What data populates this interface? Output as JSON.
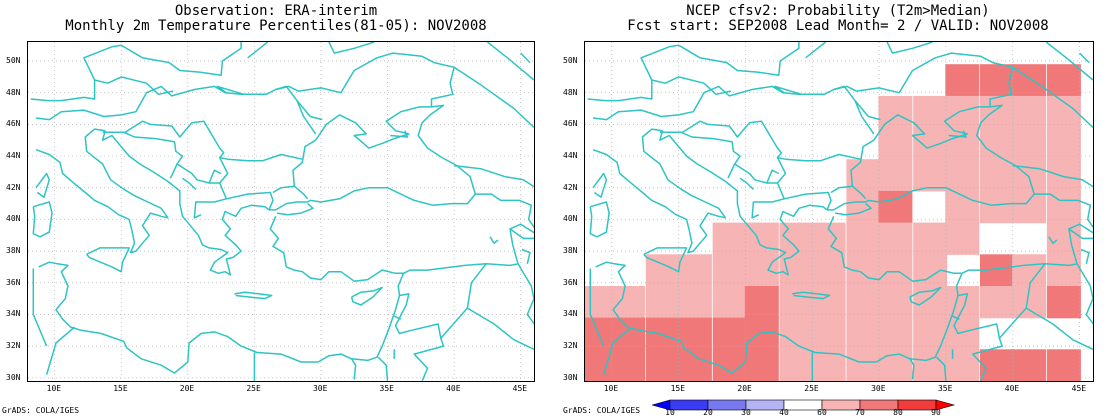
{
  "left_panel": {
    "title_line1": "Observation: ERA-interim",
    "title_line2": "Monthly 2m Temperature Percentiles(81-05): NOV2008",
    "credit": "GrADS: COLA/IGES"
  },
  "right_panel": {
    "title_line1": "NCEP cfsv2: Probability (T2m>Median)",
    "title_line2": "Fcst start: SEP2008  Lead Month= 2 / VALID: NOV2008",
    "credit": "GrADS: COLA/IGES"
  },
  "map": {
    "lon_range": [
      8,
      46
    ],
    "lat_range": [
      29.8,
      51.2
    ],
    "lon_ticks": [
      "10E",
      "15E",
      "20E",
      "25E",
      "30E",
      "35E",
      "40E",
      "45E"
    ],
    "lat_ticks": [
      "30N",
      "32N",
      "34N",
      "36N",
      "38N",
      "40N",
      "42N",
      "44N",
      "46N",
      "48N",
      "50N"
    ],
    "grid": true,
    "coast_color": "#2ec4c4",
    "grid_color": "#b0b0b0"
  },
  "colorbar": {
    "labels": [
      "10",
      "20",
      "30",
      "40",
      "60",
      "70",
      "80",
      "90"
    ],
    "colors": [
      "#0000ff",
      "#3c3cf5",
      "#7878f0",
      "#b4b4f5",
      "#ffffff",
      "#f7b4b4",
      "#f07878",
      "#f03c3c",
      "#ff0000"
    ]
  },
  "chart_data": {
    "type": "heatmap",
    "cell_size_deg": [
      2.5,
      2
    ],
    "levels": {
      "1": "60-70",
      "2": "70-80",
      "3": "80-90"
    },
    "cells": [
      {
        "lon": 36.2,
        "lat": 48.8,
        "level": 2
      },
      {
        "lon": 38.8,
        "lat": 48.8,
        "level": 2
      },
      {
        "lon": 41.2,
        "lat": 48.8,
        "level": 2
      },
      {
        "lon": 43.8,
        "lat": 48.8,
        "level": 2
      },
      {
        "lon": 31.2,
        "lat": 46.8,
        "level": 1
      },
      {
        "lon": 33.8,
        "lat": 46.8,
        "level": 1
      },
      {
        "lon": 36.2,
        "lat": 46.8,
        "level": 1
      },
      {
        "lon": 38.8,
        "lat": 46.8,
        "level": 1
      },
      {
        "lon": 41.2,
        "lat": 46.8,
        "level": 1
      },
      {
        "lon": 43.8,
        "lat": 46.8,
        "level": 1
      },
      {
        "lon": 31.2,
        "lat": 44.8,
        "level": 1
      },
      {
        "lon": 33.8,
        "lat": 44.8,
        "level": 1
      },
      {
        "lon": 36.2,
        "lat": 44.8,
        "level": 1
      },
      {
        "lon": 38.8,
        "lat": 44.8,
        "level": 1
      },
      {
        "lon": 41.2,
        "lat": 44.8,
        "level": 1
      },
      {
        "lon": 43.8,
        "lat": 44.8,
        "level": 1
      },
      {
        "lon": 28.8,
        "lat": 42.8,
        "level": 1
      },
      {
        "lon": 31.2,
        "lat": 42.8,
        "level": 1
      },
      {
        "lon": 33.8,
        "lat": 42.8,
        "level": 1
      },
      {
        "lon": 36.2,
        "lat": 42.8,
        "level": 1
      },
      {
        "lon": 38.8,
        "lat": 42.8,
        "level": 1
      },
      {
        "lon": 41.2,
        "lat": 42.8,
        "level": 1
      },
      {
        "lon": 43.8,
        "lat": 42.8,
        "level": 1
      },
      {
        "lon": 28.8,
        "lat": 40.8,
        "level": 1
      },
      {
        "lon": 31.2,
        "lat": 40.8,
        "level": 2
      },
      {
        "lon": 36.2,
        "lat": 40.8,
        "level": 1
      },
      {
        "lon": 38.8,
        "lat": 40.8,
        "level": 1
      },
      {
        "lon": 41.2,
        "lat": 40.8,
        "level": 1
      },
      {
        "lon": 43.8,
        "lat": 40.8,
        "level": 1
      },
      {
        "lon": 18.8,
        "lat": 38.8,
        "level": 1
      },
      {
        "lon": 21.2,
        "lat": 38.8,
        "level": 1
      },
      {
        "lon": 23.8,
        "lat": 38.8,
        "level": 1
      },
      {
        "lon": 26.2,
        "lat": 38.8,
        "level": 1
      },
      {
        "lon": 28.8,
        "lat": 38.8,
        "level": 1
      },
      {
        "lon": 31.2,
        "lat": 38.8,
        "level": 1
      },
      {
        "lon": 33.8,
        "lat": 38.8,
        "level": 1
      },
      {
        "lon": 36.2,
        "lat": 38.8,
        "level": 1
      },
      {
        "lon": 43.8,
        "lat": 38.8,
        "level": 1
      },
      {
        "lon": 13.8,
        "lat": 36.8,
        "level": 1
      },
      {
        "lon": 16.2,
        "lat": 36.8,
        "level": 1
      },
      {
        "lon": 18.8,
        "lat": 36.8,
        "level": 1
      },
      {
        "lon": 21.2,
        "lat": 36.8,
        "level": 1
      },
      {
        "lon": 23.8,
        "lat": 36.8,
        "level": 1
      },
      {
        "lon": 26.2,
        "lat": 36.8,
        "level": 1
      },
      {
        "lon": 28.8,
        "lat": 36.8,
        "level": 1
      },
      {
        "lon": 31.2,
        "lat": 36.8,
        "level": 1
      },
      {
        "lon": 33.8,
        "lat": 36.8,
        "level": 1
      },
      {
        "lon": 38.8,
        "lat": 36.8,
        "level": 2
      },
      {
        "lon": 41.2,
        "lat": 36.8,
        "level": 1
      },
      {
        "lon": 43.8,
        "lat": 36.8,
        "level": 1
      },
      {
        "lon": 8.8,
        "lat": 34.8,
        "level": 1
      },
      {
        "lon": 11.2,
        "lat": 34.8,
        "level": 1
      },
      {
        "lon": 13.8,
        "lat": 34.8,
        "level": 1
      },
      {
        "lon": 16.2,
        "lat": 34.8,
        "level": 1
      },
      {
        "lon": 18.8,
        "lat": 34.8,
        "level": 1
      },
      {
        "lon": 21.2,
        "lat": 34.8,
        "level": 2
      },
      {
        "lon": 23.8,
        "lat": 34.8,
        "level": 1
      },
      {
        "lon": 26.2,
        "lat": 34.8,
        "level": 1
      },
      {
        "lon": 28.8,
        "lat": 34.8,
        "level": 1
      },
      {
        "lon": 31.2,
        "lat": 34.8,
        "level": 1
      },
      {
        "lon": 33.8,
        "lat": 34.8,
        "level": 1
      },
      {
        "lon": 36.2,
        "lat": 34.8,
        "level": 1
      },
      {
        "lon": 38.8,
        "lat": 34.8,
        "level": 1
      },
      {
        "lon": 41.2,
        "lat": 34.8,
        "level": 1
      },
      {
        "lon": 43.8,
        "lat": 34.8,
        "level": 2
      },
      {
        "lon": 8.8,
        "lat": 32.8,
        "level": 2
      },
      {
        "lon": 11.2,
        "lat": 32.8,
        "level": 2
      },
      {
        "lon": 13.8,
        "lat": 32.8,
        "level": 2
      },
      {
        "lon": 16.2,
        "lat": 32.8,
        "level": 2
      },
      {
        "lon": 18.8,
        "lat": 32.8,
        "level": 2
      },
      {
        "lon": 21.2,
        "lat": 32.8,
        "level": 2
      },
      {
        "lon": 23.8,
        "lat": 32.8,
        "level": 1
      },
      {
        "lon": 26.2,
        "lat": 32.8,
        "level": 1
      },
      {
        "lon": 28.8,
        "lat": 32.8,
        "level": 1
      },
      {
        "lon": 31.2,
        "lat": 32.8,
        "level": 1
      },
      {
        "lon": 33.8,
        "lat": 32.8,
        "level": 1
      },
      {
        "lon": 36.2,
        "lat": 32.8,
        "level": 1
      },
      {
        "lon": 8.8,
        "lat": 30.8,
        "level": 2
      },
      {
        "lon": 11.2,
        "lat": 30.8,
        "level": 2
      },
      {
        "lon": 13.8,
        "lat": 30.8,
        "level": 2
      },
      {
        "lon": 16.2,
        "lat": 30.8,
        "level": 2
      },
      {
        "lon": 18.8,
        "lat": 30.8,
        "level": 2
      },
      {
        "lon": 21.2,
        "lat": 30.8,
        "level": 2
      },
      {
        "lon": 23.8,
        "lat": 30.8,
        "level": 1
      },
      {
        "lon": 26.2,
        "lat": 30.8,
        "level": 1
      },
      {
        "lon": 28.8,
        "lat": 30.8,
        "level": 1
      },
      {
        "lon": 31.2,
        "lat": 30.8,
        "level": 1
      },
      {
        "lon": 33.8,
        "lat": 30.8,
        "level": 1
      },
      {
        "lon": 36.2,
        "lat": 30.8,
        "level": 1
      },
      {
        "lon": 38.8,
        "lat": 30.8,
        "level": 2
      },
      {
        "lon": 41.2,
        "lat": 30.8,
        "level": 2
      },
      {
        "lon": 43.8,
        "lat": 30.8,
        "level": 2
      }
    ]
  }
}
